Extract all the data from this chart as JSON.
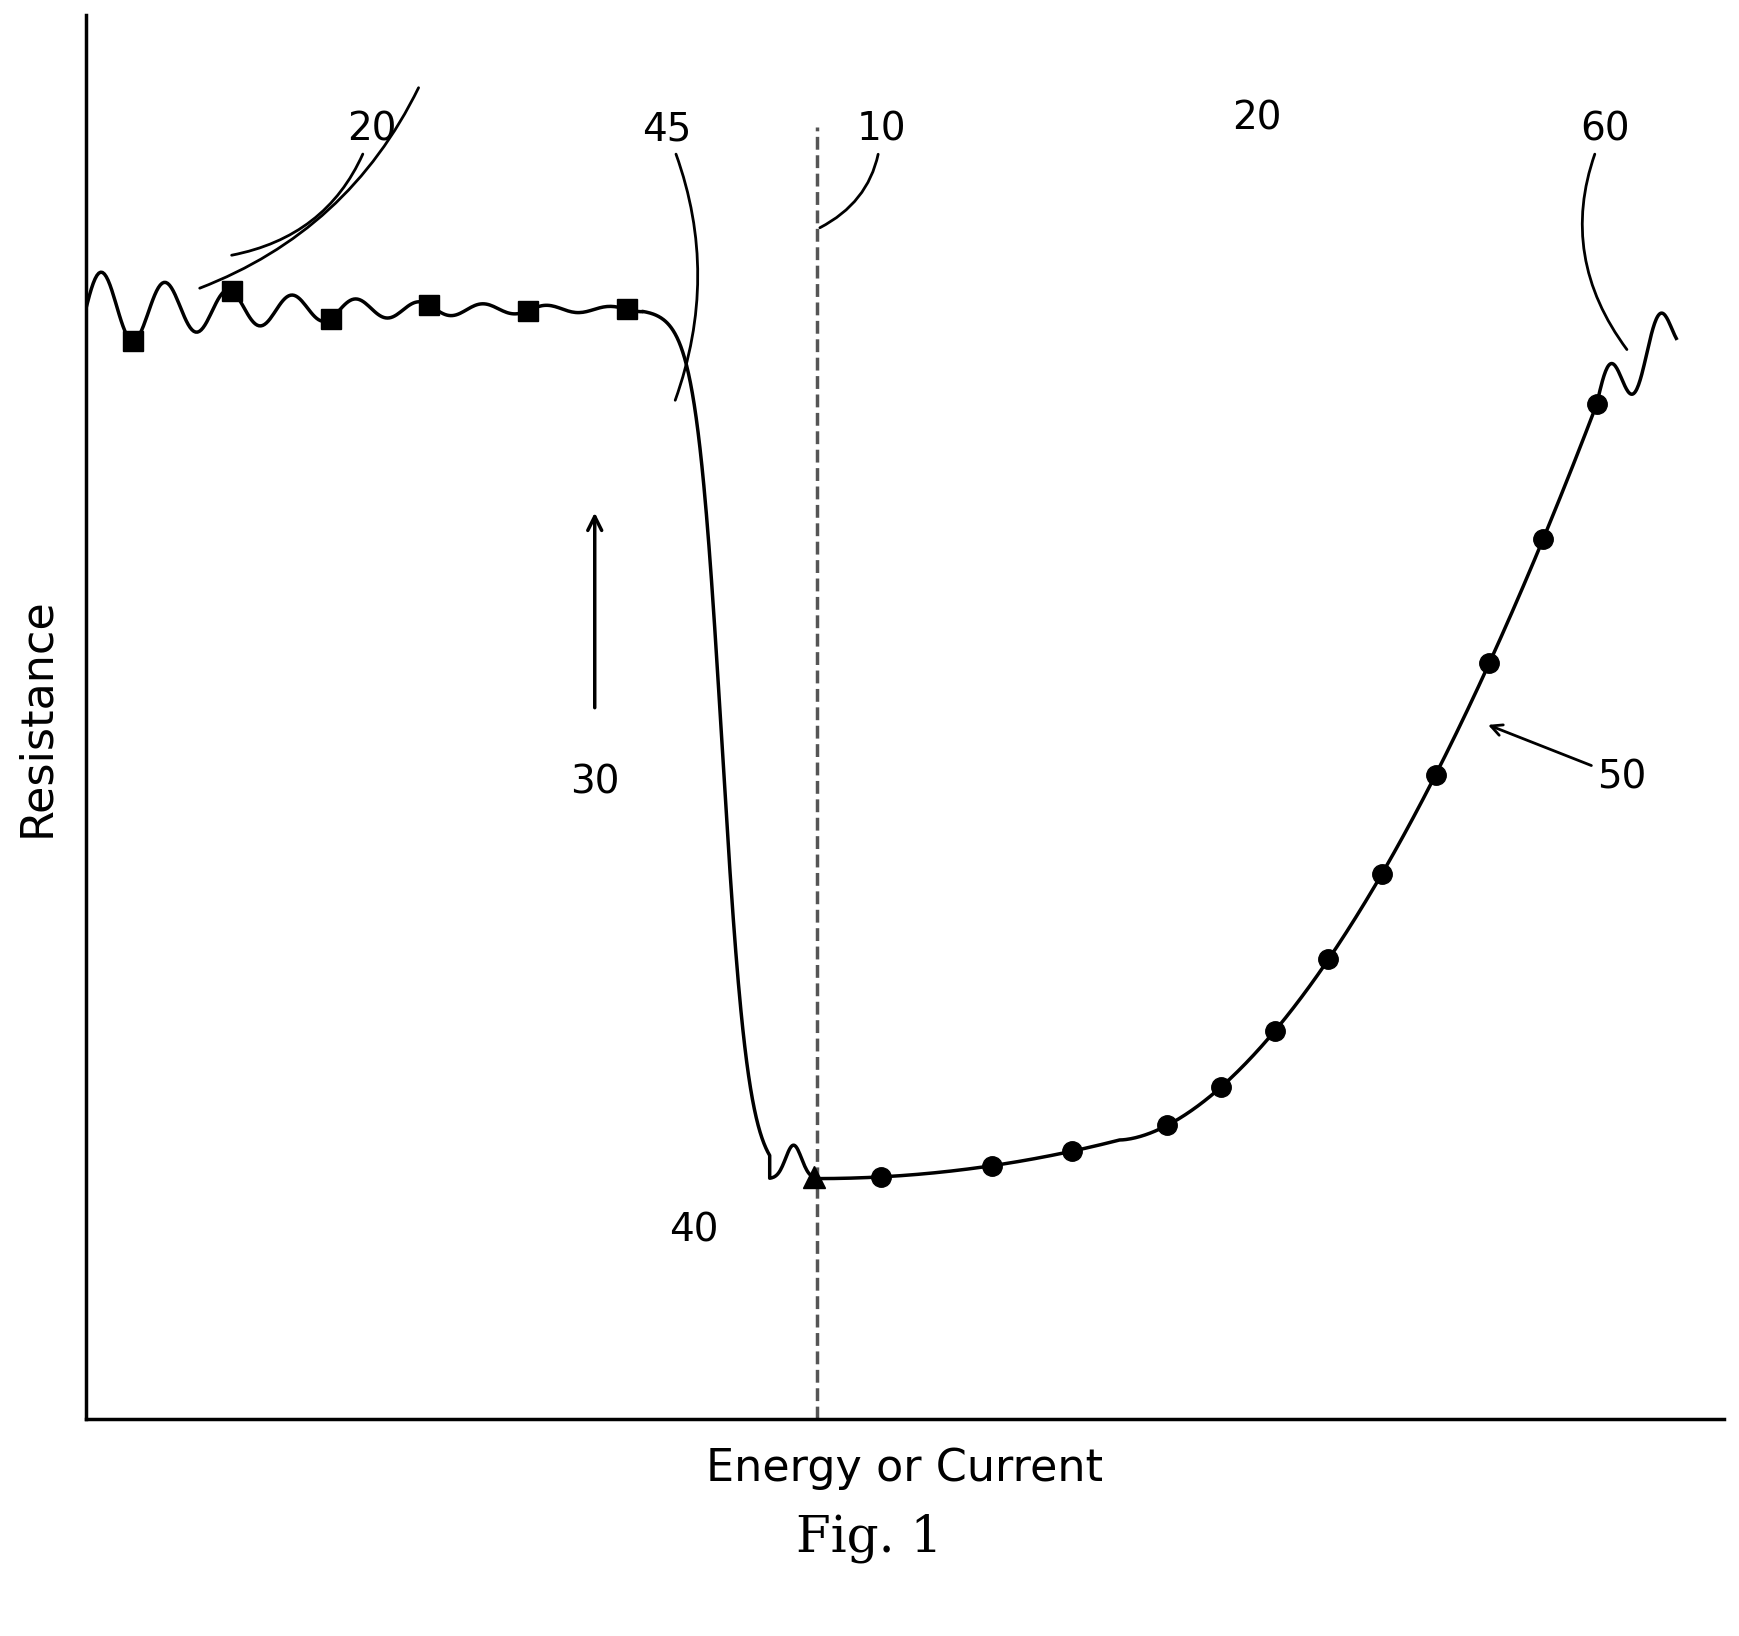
{
  "title": "",
  "xlabel": "Energy or Current",
  "ylabel": "Resistance",
  "fig_caption": "Fig. 1",
  "background_color": "#ffffff",
  "line_color": "#000000",
  "curve_linewidth": 2.5,
  "marker_size": 14,
  "marker_color": "#000000",
  "annotation_fontsize": 28,
  "axis_label_fontsize": 32,
  "caption_fontsize": 36,
  "arrow_color": "#000000",
  "dashed_line_color": "#555555",
  "label_20": "20",
  "label_45": "45",
  "label_10": "10",
  "label_40": "40",
  "label_30": "30",
  "label_50": "50",
  "label_60": "60"
}
